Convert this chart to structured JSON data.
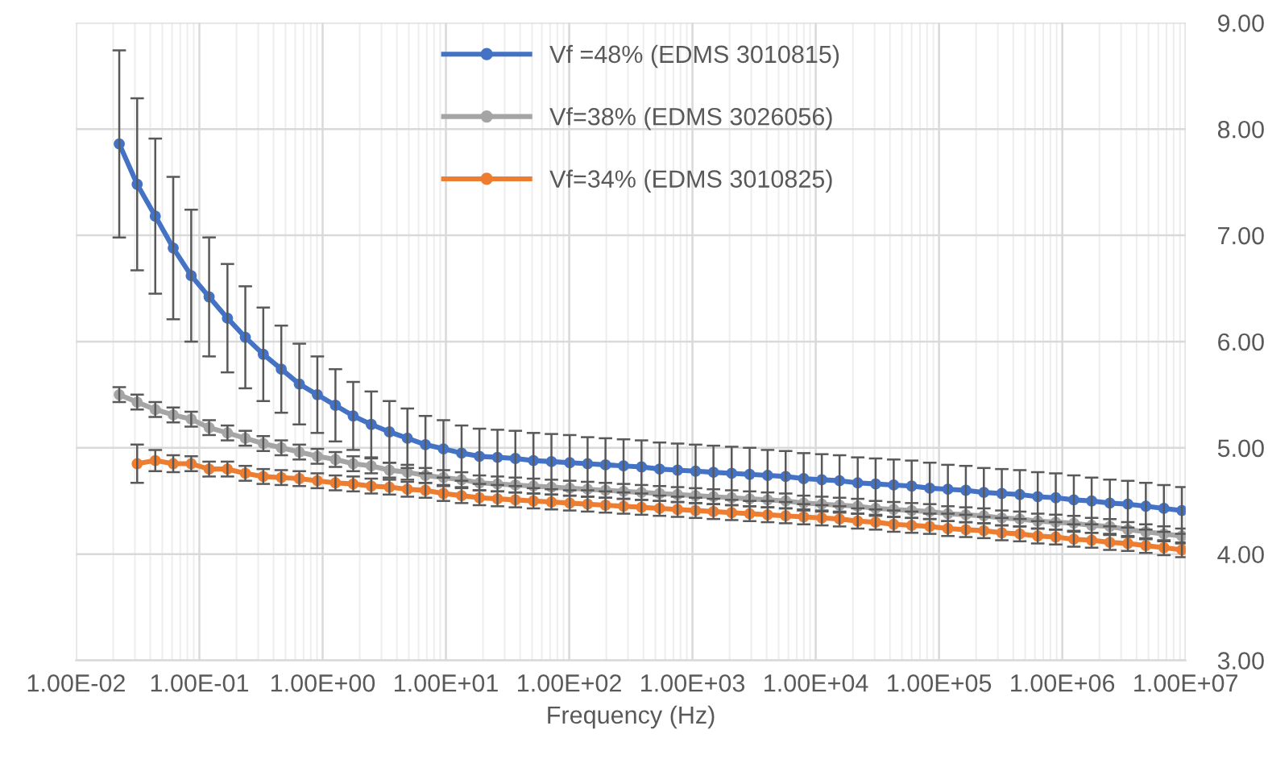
{
  "chart_data": {
    "type": "line",
    "xlabel": "Frequency (Hz)",
    "log": "x",
    "grid": true,
    "legend": "top",
    "marker": "circle",
    "line_style": "solid",
    "xlim": [
      0.01,
      10000000
    ],
    "xticks": [
      {
        "value": 0.01,
        "label": "1.00E-02"
      },
      {
        "value": 0.1,
        "label": "1.00E-01"
      },
      {
        "value": 1,
        "label": "1.00E+00"
      },
      {
        "value": 10,
        "label": "1.00E+01"
      },
      {
        "value": 100,
        "label": "1.00E+02"
      },
      {
        "value": 1000,
        "label": "1.00E+03"
      },
      {
        "value": 10000,
        "label": "1.00E+04"
      },
      {
        "value": 100000,
        "label": "1.00E+05"
      },
      {
        "value": 1000000,
        "label": "1.00E+06"
      },
      {
        "value": 10000000,
        "label": "1.00E+07"
      }
    ],
    "ylim": [
      3,
      9
    ],
    "yticks": [
      {
        "value": 3,
        "label": "3.00"
      },
      {
        "value": 4,
        "label": "4.00"
      },
      {
        "value": 5,
        "label": "5.00"
      },
      {
        "value": 6,
        "label": "6.00"
      },
      {
        "value": 7,
        "label": "7.00"
      },
      {
        "value": 8,
        "label": "8.00"
      },
      {
        "value": 9,
        "label": "9.00"
      }
    ],
    "x": [
      0.0224,
      0.0313,
      0.0439,
      0.0614,
      0.0859,
      0.12,
      0.169,
      0.236,
      0.33,
      0.462,
      0.647,
      0.906,
      1.27,
      1.77,
      2.48,
      3.48,
      4.87,
      6.82,
      9.55,
      13.4,
      18.7,
      26.2,
      36.6,
      51.3,
      71.8,
      101,
      141,
      197,
      276,
      386,
      541,
      757,
      1060,
      1480,
      2080,
      2910,
      4070,
      5700,
      7980,
      11200,
      15600,
      21900,
      30600,
      42900,
      60000,
      84100,
      118000,
      165000,
      231000,
      323000,
      452000,
      632000,
      885000,
      1240000,
      1730000,
      2430000,
      3400000,
      4760000,
      6670000,
      9330000
    ],
    "series": [
      {
        "name": "Vf =48% (EDMS 3010815)",
        "color": "#4472c4",
        "values": [
          7.86,
          7.48,
          7.18,
          6.88,
          6.62,
          6.42,
          6.22,
          6.04,
          5.88,
          5.74,
          5.6,
          5.5,
          5.4,
          5.3,
          5.22,
          5.15,
          5.09,
          5.03,
          4.99,
          4.95,
          4.92,
          4.91,
          4.9,
          4.88,
          4.87,
          4.86,
          4.85,
          4.84,
          4.83,
          4.82,
          4.8,
          4.79,
          4.78,
          4.77,
          4.76,
          4.75,
          4.74,
          4.73,
          4.71,
          4.7,
          4.69,
          4.67,
          4.66,
          4.65,
          4.64,
          4.62,
          4.61,
          4.6,
          4.58,
          4.57,
          4.56,
          4.54,
          4.53,
          4.51,
          4.5,
          4.48,
          4.47,
          4.45,
          4.43,
          4.41
        ],
        "errors": [
          0.88,
          0.81,
          0.73,
          0.67,
          0.62,
          0.56,
          0.51,
          0.48,
          0.44,
          0.41,
          0.38,
          0.36,
          0.34,
          0.32,
          0.31,
          0.29,
          0.28,
          0.27,
          0.27,
          0.26,
          0.26,
          0.26,
          0.26,
          0.26,
          0.26,
          0.26,
          0.25,
          0.25,
          0.25,
          0.25,
          0.25,
          0.25,
          0.25,
          0.25,
          0.25,
          0.25,
          0.24,
          0.24,
          0.24,
          0.24,
          0.24,
          0.24,
          0.24,
          0.24,
          0.24,
          0.24,
          0.23,
          0.23,
          0.23,
          0.23,
          0.23,
          0.23,
          0.23,
          0.23,
          0.22,
          0.22,
          0.22,
          0.22,
          0.22,
          0.22
        ]
      },
      {
        "name": "Vf=38% (EDMS 3026056)",
        "color": "#a5a5a5",
        "values": [
          5.5,
          5.43,
          5.36,
          5.31,
          5.27,
          5.19,
          5.14,
          5.09,
          5.04,
          5.0,
          4.96,
          4.92,
          4.89,
          4.85,
          4.83,
          4.79,
          4.77,
          4.74,
          4.72,
          4.7,
          4.67,
          4.66,
          4.65,
          4.64,
          4.63,
          4.62,
          4.61,
          4.6,
          4.59,
          4.58,
          4.57,
          4.56,
          4.55,
          4.54,
          4.53,
          4.52,
          4.51,
          4.5,
          4.48,
          4.47,
          4.46,
          4.45,
          4.43,
          4.42,
          4.41,
          4.4,
          4.38,
          4.37,
          4.36,
          4.34,
          4.33,
          4.31,
          4.3,
          4.29,
          4.27,
          4.26,
          4.23,
          4.21,
          4.19,
          4.17
        ],
        "errors": [
          0.07,
          0.07,
          0.07,
          0.07,
          0.07,
          0.07,
          0.07,
          0.07,
          0.07,
          0.07,
          0.07,
          0.07,
          0.07,
          0.07,
          0.07,
          0.07,
          0.07,
          0.07,
          0.07,
          0.07,
          0.07,
          0.07,
          0.07,
          0.07,
          0.07,
          0.07,
          0.07,
          0.07,
          0.07,
          0.07,
          0.07,
          0.07,
          0.07,
          0.07,
          0.07,
          0.07,
          0.07,
          0.07,
          0.07,
          0.07,
          0.07,
          0.07,
          0.07,
          0.07,
          0.07,
          0.07,
          0.07,
          0.07,
          0.07,
          0.07,
          0.07,
          0.07,
          0.07,
          0.07,
          0.07,
          0.07,
          0.07,
          0.07,
          0.07,
          0.07
        ]
      },
      {
        "name": "Vf=34% (EDMS 3010825)",
        "color": "#ed7d31",
        "values": [
          null,
          4.85,
          4.88,
          4.85,
          4.85,
          4.8,
          4.8,
          4.76,
          4.73,
          4.72,
          4.71,
          4.69,
          4.67,
          4.66,
          4.64,
          4.63,
          4.61,
          4.6,
          4.57,
          4.55,
          4.53,
          4.52,
          4.51,
          4.5,
          4.49,
          4.48,
          4.47,
          4.46,
          4.45,
          4.44,
          4.43,
          4.42,
          4.41,
          4.4,
          4.39,
          4.38,
          4.37,
          4.36,
          4.35,
          4.34,
          4.33,
          4.31,
          4.3,
          4.28,
          4.27,
          4.26,
          4.24,
          4.23,
          4.22,
          4.2,
          4.19,
          4.17,
          4.16,
          4.14,
          4.13,
          4.11,
          4.1,
          4.08,
          4.06,
          4.04
        ],
        "errors": [
          null,
          0.18,
          0.1,
          0.08,
          0.07,
          0.07,
          0.07,
          0.07,
          0.07,
          0.07,
          0.07,
          0.07,
          0.07,
          0.07,
          0.07,
          0.07,
          0.07,
          0.07,
          0.07,
          0.07,
          0.07,
          0.07,
          0.07,
          0.07,
          0.07,
          0.07,
          0.07,
          0.07,
          0.07,
          0.07,
          0.07,
          0.07,
          0.07,
          0.07,
          0.07,
          0.07,
          0.07,
          0.07,
          0.07,
          0.07,
          0.07,
          0.07,
          0.07,
          0.07,
          0.07,
          0.07,
          0.07,
          0.07,
          0.07,
          0.07,
          0.07,
          0.07,
          0.07,
          0.07,
          0.07,
          0.07,
          0.07,
          0.07,
          0.07,
          0.07
        ]
      }
    ]
  }
}
